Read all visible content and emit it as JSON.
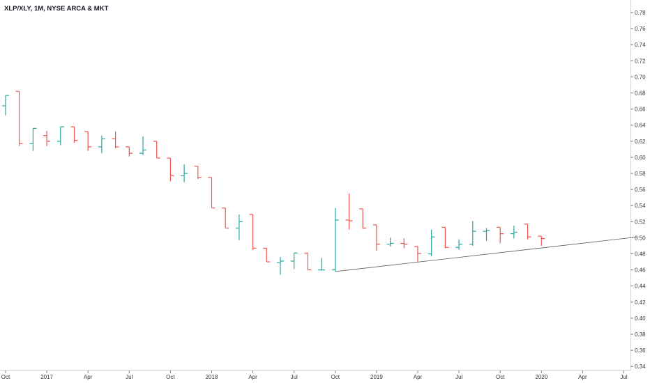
{
  "chart_data": {
    "type": "ohlc",
    "title": "XLP/XLY, 1M, NYSE ARCA & MKT",
    "ylim": [
      0.34,
      0.79
    ],
    "y_ticks": [
      "0.78",
      "0.76",
      "0.74",
      "0.72",
      "0.70",
      "0.68",
      "0.66",
      "0.64",
      "0.62",
      "0.60",
      "0.58",
      "0.56",
      "0.54",
      "0.52",
      "0.50",
      "0.48",
      "0.46",
      "0.44",
      "0.42",
      "0.40",
      "0.38",
      "0.36",
      "0.34"
    ],
    "x_ticks": [
      "Oct",
      "2017",
      "Apr",
      "Jul",
      "Oct",
      "2018",
      "Apr",
      "Jul",
      "Oct",
      "2019",
      "Apr",
      "Jul",
      "Oct",
      "2020",
      "Apr",
      "Jul"
    ],
    "colors": {
      "up": "#26a69a",
      "down": "#ef5350",
      "trendline": "#555555",
      "axis": "#d1d4dc"
    },
    "bars": [
      {
        "date": "2016-10",
        "open": 0.664,
        "high": 0.677,
        "low": 0.652,
        "close": 0.677
      },
      {
        "date": "2016-11",
        "open": 0.682,
        "high": 0.682,
        "low": 0.614,
        "close": 0.617
      },
      {
        "date": "2016-12",
        "open": 0.617,
        "high": 0.636,
        "low": 0.608,
        "close": 0.636
      },
      {
        "date": "2017-01",
        "open": 0.627,
        "high": 0.633,
        "low": 0.614,
        "close": 0.62
      },
      {
        "date": "2017-02",
        "open": 0.62,
        "high": 0.638,
        "low": 0.615,
        "close": 0.638
      },
      {
        "date": "2017-03",
        "open": 0.638,
        "high": 0.638,
        "low": 0.618,
        "close": 0.621
      },
      {
        "date": "2017-04",
        "open": 0.632,
        "high": 0.632,
        "low": 0.608,
        "close": 0.613
      },
      {
        "date": "2017-05",
        "open": 0.613,
        "high": 0.627,
        "low": 0.605,
        "close": 0.623
      },
      {
        "date": "2017-06",
        "open": 0.623,
        "high": 0.632,
        "low": 0.611,
        "close": 0.613
      },
      {
        "date": "2017-07",
        "open": 0.613,
        "high": 0.613,
        "low": 0.601,
        "close": 0.605
      },
      {
        "date": "2017-08",
        "open": 0.605,
        "high": 0.626,
        "low": 0.603,
        "close": 0.609
      },
      {
        "date": "2017-09",
        "open": 0.62,
        "high": 0.62,
        "low": 0.599,
        "close": 0.599
      },
      {
        "date": "2017-10",
        "open": 0.599,
        "high": 0.599,
        "low": 0.57,
        "close": 0.577
      },
      {
        "date": "2017-11",
        "open": 0.577,
        "high": 0.591,
        "low": 0.569,
        "close": 0.58
      },
      {
        "date": "2017-12",
        "open": 0.589,
        "high": 0.589,
        "low": 0.573,
        "close": 0.575
      },
      {
        "date": "2018-01",
        "open": 0.575,
        "high": 0.575,
        "low": 0.537,
        "close": 0.537
      },
      {
        "date": "2018-02",
        "open": 0.537,
        "high": 0.537,
        "low": 0.512,
        "close": 0.512
      },
      {
        "date": "2018-03",
        "open": 0.512,
        "high": 0.529,
        "low": 0.497,
        "close": 0.52
      },
      {
        "date": "2018-04",
        "open": 0.529,
        "high": 0.529,
        "low": 0.485,
        "close": 0.487
      },
      {
        "date": "2018-05",
        "open": 0.487,
        "high": 0.487,
        "low": 0.47,
        "close": 0.47
      },
      {
        "date": "2018-06",
        "open": 0.469,
        "high": 0.476,
        "low": 0.454,
        "close": 0.471
      },
      {
        "date": "2018-07",
        "open": 0.471,
        "high": 0.481,
        "low": 0.461,
        "close": 0.481
      },
      {
        "date": "2018-08",
        "open": 0.481,
        "high": 0.481,
        "low": 0.46,
        "close": 0.46
      },
      {
        "date": "2018-09",
        "open": 0.46,
        "high": 0.475,
        "low": 0.459,
        "close": 0.46
      },
      {
        "date": "2018-10",
        "open": 0.46,
        "high": 0.537,
        "low": 0.458,
        "close": 0.522
      },
      {
        "date": "2018-11",
        "open": 0.522,
        "high": 0.555,
        "low": 0.51,
        "close": 0.521
      },
      {
        "date": "2018-12",
        "open": 0.536,
        "high": 0.536,
        "low": 0.511,
        "close": 0.512
      },
      {
        "date": "2019-01",
        "open": 0.516,
        "high": 0.516,
        "low": 0.484,
        "close": 0.492
      },
      {
        "date": "2019-02",
        "open": 0.492,
        "high": 0.5,
        "low": 0.489,
        "close": 0.493
      },
      {
        "date": "2019-03",
        "open": 0.493,
        "high": 0.499,
        "low": 0.487,
        "close": 0.492
      },
      {
        "date": "2019-04",
        "open": 0.489,
        "high": 0.489,
        "low": 0.47,
        "close": 0.48
      },
      {
        "date": "2019-05",
        "open": 0.48,
        "high": 0.51,
        "low": 0.477,
        "close": 0.501
      },
      {
        "date": "2019-06",
        "open": 0.513,
        "high": 0.513,
        "low": 0.487,
        "close": 0.488
      },
      {
        "date": "2019-07",
        "open": 0.488,
        "high": 0.498,
        "low": 0.485,
        "close": 0.492
      },
      {
        "date": "2019-08",
        "open": 0.492,
        "high": 0.521,
        "low": 0.49,
        "close": 0.508
      },
      {
        "date": "2019-09",
        "open": 0.508,
        "high": 0.512,
        "low": 0.496,
        "close": 0.509
      },
      {
        "date": "2019-10",
        "open": 0.513,
        "high": 0.513,
        "low": 0.493,
        "close": 0.505
      },
      {
        "date": "2019-11",
        "open": 0.505,
        "high": 0.515,
        "low": 0.499,
        "close": 0.507
      },
      {
        "date": "2019-12",
        "open": 0.517,
        "high": 0.517,
        "low": 0.498,
        "close": 0.501
      },
      {
        "date": "2020-01",
        "open": 0.502,
        "high": 0.502,
        "low": 0.49,
        "close": 0.499
      }
    ],
    "trendline": {
      "from": {
        "date": "2018-10",
        "value": 0.458
      },
      "to": {
        "date": "2020-08",
        "value": 0.501
      }
    },
    "grid": false
  }
}
